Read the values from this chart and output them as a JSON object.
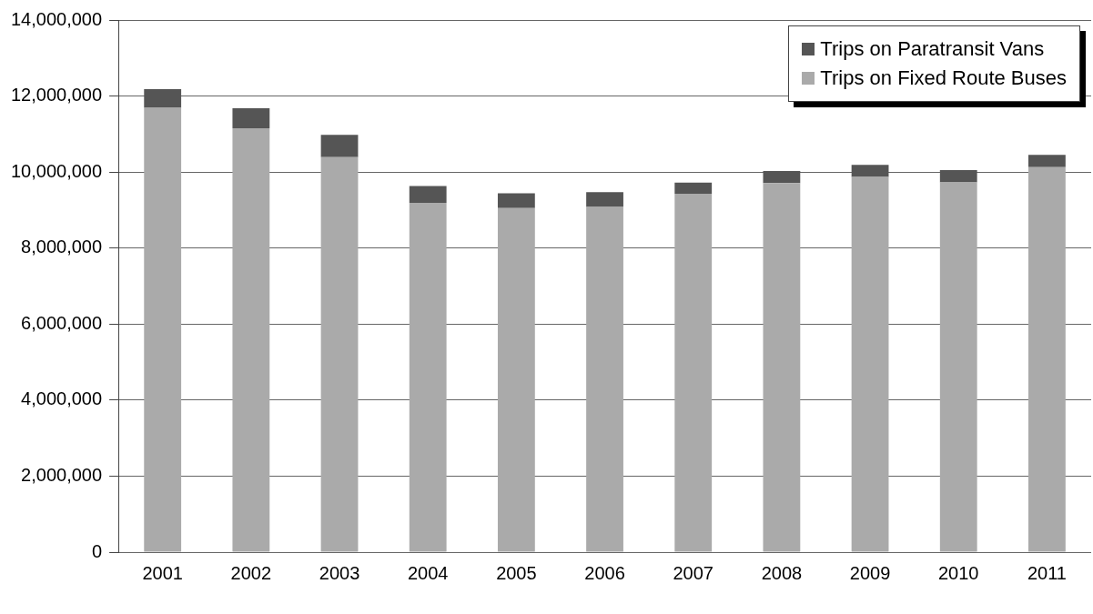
{
  "chart_data": {
    "type": "bar",
    "stacked": true,
    "categories": [
      "2001",
      "2002",
      "2003",
      "2004",
      "2005",
      "2006",
      "2007",
      "2008",
      "2009",
      "2010",
      "2011"
    ],
    "series": [
      {
        "name": "Trips on Fixed Route Buses",
        "color": "#aaaaaa",
        "values": [
          11690000,
          11150000,
          10390000,
          9190000,
          9050000,
          9080000,
          9430000,
          9710000,
          9870000,
          9730000,
          10130000
        ]
      },
      {
        "name": "Trips on Paratransit Vans",
        "color": "#555555",
        "values": [
          490000,
          530000,
          590000,
          440000,
          390000,
          390000,
          290000,
          320000,
          320000,
          320000,
          320000
        ]
      }
    ],
    "ylim": [
      0,
      14000000
    ],
    "yticks": [
      {
        "value": 0,
        "label": "0"
      },
      {
        "value": 2000000,
        "label": "2,000,000"
      },
      {
        "value": 4000000,
        "label": "4,000,000"
      },
      {
        "value": 6000000,
        "label": "6,000,000"
      },
      {
        "value": 8000000,
        "label": "8,000,000"
      },
      {
        "value": 10000000,
        "label": "10,000,000"
      },
      {
        "value": 12000000,
        "label": "12,000,000"
      },
      {
        "value": 14000000,
        "label": "14,000,000"
      }
    ],
    "grid": "y",
    "legend": "top right"
  }
}
